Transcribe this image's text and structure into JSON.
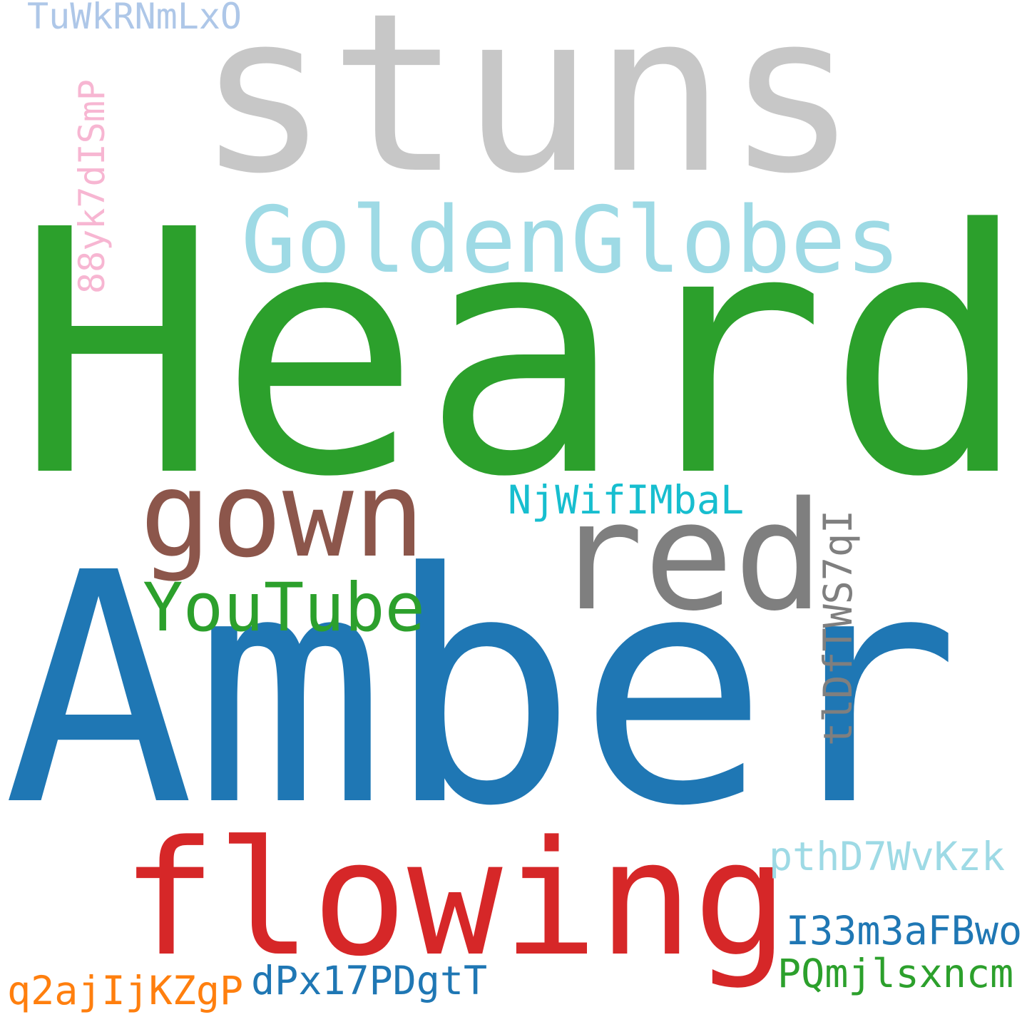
{
  "words": [
    {
      "key": "stuns",
      "text": "stuns",
      "color": "#c7c7c7",
      "orientation": "horizontal"
    },
    {
      "key": "heard",
      "text": "Heard",
      "color": "#2ca02c",
      "orientation": "horizontal"
    },
    {
      "key": "goldenglobes",
      "text": "GoldenGlobes",
      "color": "#9edae5",
      "orientation": "horizontal"
    },
    {
      "key": "gown",
      "text": "gown",
      "color": "#8c564b",
      "orientation": "horizontal"
    },
    {
      "key": "red",
      "text": "red",
      "color": "#7f7f7f",
      "orientation": "horizontal"
    },
    {
      "key": "amber",
      "text": "Amber",
      "color": "#1f77b4",
      "orientation": "horizontal"
    },
    {
      "key": "youtube",
      "text": "YouTube",
      "color": "#2ca02c",
      "orientation": "horizontal"
    },
    {
      "key": "njwif",
      "text": "NjWifIMbaL",
      "color": "#17becf",
      "orientation": "horizontal"
    },
    {
      "key": "flowing",
      "text": "flowing",
      "color": "#d62728",
      "orientation": "horizontal"
    },
    {
      "key": "pthd",
      "text": "pthD7WvKzk",
      "color": "#9edae5",
      "orientation": "horizontal"
    },
    {
      "key": "i33m",
      "text": "I33m3aFBwo",
      "color": "#1f77b4",
      "orientation": "horizontal"
    },
    {
      "key": "pqmj",
      "text": "PQmjlsxncm",
      "color": "#2ca02c",
      "orientation": "horizontal"
    },
    {
      "key": "q2aj",
      "text": "q2ajIjKZgP",
      "color": "#ff7f0e",
      "orientation": "horizontal"
    },
    {
      "key": "dpx",
      "text": "dPx17PDgtT",
      "color": "#1f77b4",
      "orientation": "horizontal"
    },
    {
      "key": "tuwk",
      "text": "TuWkRNmLxO",
      "color": "#aec7e8",
      "orientation": "horizontal"
    },
    {
      "key": "88yk",
      "text": "88yk7dISmP",
      "color": "#f7b6d2",
      "orientation": "vertical"
    },
    {
      "key": "tldf",
      "text": "tlDfTWS7qI",
      "color": "#7f7f7f",
      "orientation": "vertical"
    }
  ]
}
